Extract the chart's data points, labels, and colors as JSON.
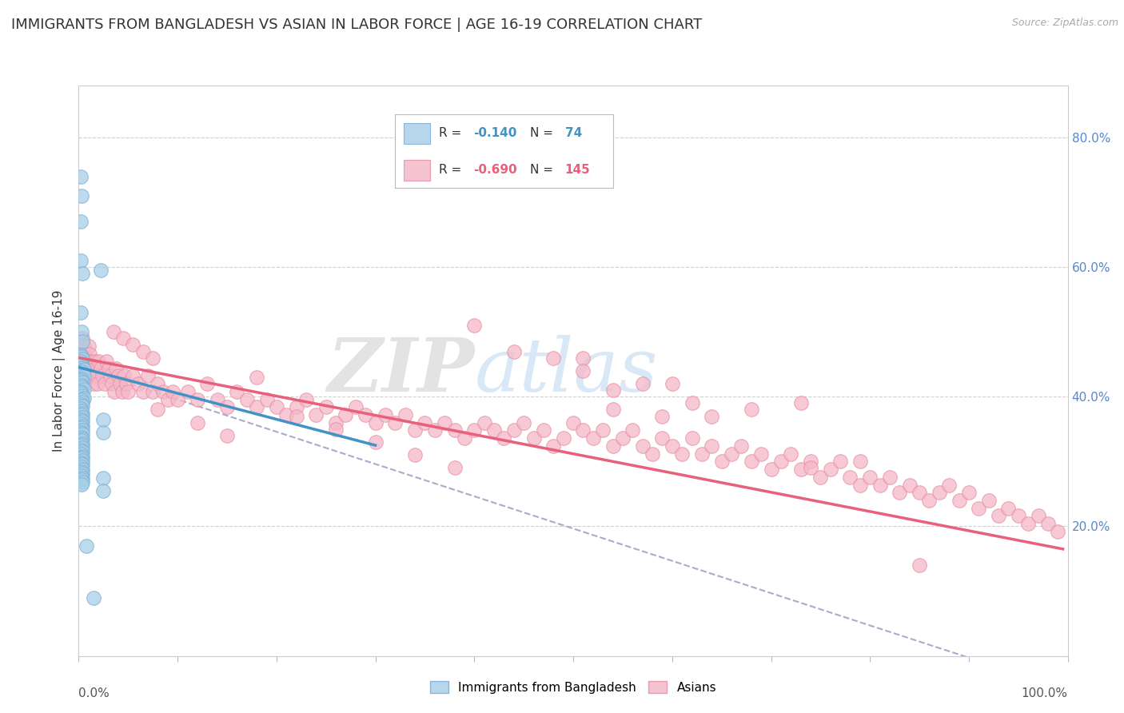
{
  "title": "IMMIGRANTS FROM BANGLADESH VS ASIAN IN LABOR FORCE | AGE 16-19 CORRELATION CHART",
  "source": "Source: ZipAtlas.com",
  "ylabel": "In Labor Force | Age 16-19",
  "xlim": [
    0.0,
    1.0
  ],
  "ylim": [
    0.0,
    0.88
  ],
  "y_ticks": [
    0.0,
    0.2,
    0.4,
    0.6,
    0.8
  ],
  "y_tick_labels": [
    "",
    "20.0%",
    "40.0%",
    "60.0%",
    "80.0%"
  ],
  "x_tick_left_label": "0.0%",
  "x_tick_right_label": "100.0%",
  "background_color": "#ffffff",
  "grid_color": "#d0d0d0",
  "watermark_text": "ZIP",
  "watermark_text2": "atlas",
  "legend_label1": "Immigrants from Bangladesh",
  "legend_label2": "Asians",
  "blue_color": "#a8cfe8",
  "blue_edge_color": "#7bafd4",
  "pink_color": "#f4b8c8",
  "pink_edge_color": "#e88fa5",
  "blue_line_color": "#4292c6",
  "pink_line_color": "#e8607a",
  "dashed_line_color": "#aaaacc",
  "right_tick_color": "#5588cc",
  "title_fontsize": 13,
  "axis_label_fontsize": 11,
  "tick_fontsize": 11,
  "blue_scatter": [
    [
      0.002,
      0.74
    ],
    [
      0.003,
      0.71
    ],
    [
      0.002,
      0.67
    ],
    [
      0.002,
      0.61
    ],
    [
      0.004,
      0.59
    ],
    [
      0.002,
      0.53
    ],
    [
      0.003,
      0.5
    ],
    [
      0.004,
      0.485
    ],
    [
      0.002,
      0.465
    ],
    [
      0.003,
      0.462
    ],
    [
      0.004,
      0.458
    ],
    [
      0.002,
      0.455
    ],
    [
      0.003,
      0.45
    ],
    [
      0.004,
      0.445
    ],
    [
      0.005,
      0.442
    ],
    [
      0.003,
      0.438
    ],
    [
      0.004,
      0.435
    ],
    [
      0.005,
      0.432
    ],
    [
      0.003,
      0.428
    ],
    [
      0.002,
      0.425
    ],
    [
      0.004,
      0.422
    ],
    [
      0.003,
      0.418
    ],
    [
      0.004,
      0.415
    ],
    [
      0.005,
      0.412
    ],
    [
      0.002,
      0.408
    ],
    [
      0.003,
      0.405
    ],
    [
      0.004,
      0.402
    ],
    [
      0.005,
      0.398
    ],
    [
      0.003,
      0.395
    ],
    [
      0.004,
      0.392
    ],
    [
      0.003,
      0.388
    ],
    [
      0.004,
      0.385
    ],
    [
      0.002,
      0.382
    ],
    [
      0.003,
      0.378
    ],
    [
      0.004,
      0.375
    ],
    [
      0.003,
      0.372
    ],
    [
      0.004,
      0.368
    ],
    [
      0.003,
      0.365
    ],
    [
      0.004,
      0.362
    ],
    [
      0.003,
      0.358
    ],
    [
      0.004,
      0.355
    ],
    [
      0.003,
      0.352
    ],
    [
      0.004,
      0.348
    ],
    [
      0.003,
      0.345
    ],
    [
      0.004,
      0.342
    ],
    [
      0.003,
      0.338
    ],
    [
      0.004,
      0.335
    ],
    [
      0.003,
      0.332
    ],
    [
      0.004,
      0.328
    ],
    [
      0.003,
      0.325
    ],
    [
      0.004,
      0.322
    ],
    [
      0.003,
      0.318
    ],
    [
      0.004,
      0.315
    ],
    [
      0.003,
      0.312
    ],
    [
      0.004,
      0.308
    ],
    [
      0.003,
      0.305
    ],
    [
      0.004,
      0.302
    ],
    [
      0.003,
      0.298
    ],
    [
      0.004,
      0.295
    ],
    [
      0.003,
      0.292
    ],
    [
      0.004,
      0.288
    ],
    [
      0.003,
      0.285
    ],
    [
      0.004,
      0.282
    ],
    [
      0.003,
      0.278
    ],
    [
      0.004,
      0.275
    ],
    [
      0.003,
      0.272
    ],
    [
      0.004,
      0.268
    ],
    [
      0.003,
      0.265
    ],
    [
      0.022,
      0.595
    ],
    [
      0.025,
      0.365
    ],
    [
      0.025,
      0.345
    ],
    [
      0.025,
      0.275
    ],
    [
      0.025,
      0.255
    ],
    [
      0.008,
      0.17
    ],
    [
      0.015,
      0.09
    ]
  ],
  "pink_scatter": [
    [
      0.004,
      0.49
    ],
    [
      0.005,
      0.478
    ],
    [
      0.006,
      0.466
    ],
    [
      0.007,
      0.455
    ],
    [
      0.008,
      0.443
    ],
    [
      0.009,
      0.432
    ],
    [
      0.01,
      0.478
    ],
    [
      0.011,
      0.466
    ],
    [
      0.012,
      0.455
    ],
    [
      0.013,
      0.443
    ],
    [
      0.014,
      0.432
    ],
    [
      0.015,
      0.42
    ],
    [
      0.016,
      0.455
    ],
    [
      0.017,
      0.443
    ],
    [
      0.018,
      0.432
    ],
    [
      0.019,
      0.42
    ],
    [
      0.02,
      0.455
    ],
    [
      0.022,
      0.443
    ],
    [
      0.024,
      0.432
    ],
    [
      0.026,
      0.42
    ],
    [
      0.028,
      0.455
    ],
    [
      0.03,
      0.443
    ],
    [
      0.032,
      0.432
    ],
    [
      0.034,
      0.42
    ],
    [
      0.036,
      0.408
    ],
    [
      0.038,
      0.443
    ],
    [
      0.04,
      0.432
    ],
    [
      0.042,
      0.42
    ],
    [
      0.044,
      0.408
    ],
    [
      0.046,
      0.432
    ],
    [
      0.048,
      0.42
    ],
    [
      0.05,
      0.408
    ],
    [
      0.055,
      0.432
    ],
    [
      0.06,
      0.42
    ],
    [
      0.065,
      0.408
    ],
    [
      0.07,
      0.432
    ],
    [
      0.075,
      0.408
    ],
    [
      0.08,
      0.42
    ],
    [
      0.085,
      0.408
    ],
    [
      0.09,
      0.396
    ],
    [
      0.095,
      0.408
    ],
    [
      0.1,
      0.396
    ],
    [
      0.11,
      0.408
    ],
    [
      0.12,
      0.396
    ],
    [
      0.13,
      0.42
    ],
    [
      0.14,
      0.396
    ],
    [
      0.15,
      0.384
    ],
    [
      0.16,
      0.408
    ],
    [
      0.17,
      0.396
    ],
    [
      0.18,
      0.384
    ],
    [
      0.19,
      0.396
    ],
    [
      0.2,
      0.384
    ],
    [
      0.21,
      0.372
    ],
    [
      0.22,
      0.384
    ],
    [
      0.23,
      0.396
    ],
    [
      0.24,
      0.372
    ],
    [
      0.25,
      0.384
    ],
    [
      0.26,
      0.36
    ],
    [
      0.27,
      0.372
    ],
    [
      0.28,
      0.384
    ],
    [
      0.29,
      0.372
    ],
    [
      0.3,
      0.36
    ],
    [
      0.31,
      0.372
    ],
    [
      0.32,
      0.36
    ],
    [
      0.33,
      0.372
    ],
    [
      0.34,
      0.348
    ],
    [
      0.35,
      0.36
    ],
    [
      0.36,
      0.348
    ],
    [
      0.37,
      0.36
    ],
    [
      0.38,
      0.348
    ],
    [
      0.39,
      0.336
    ],
    [
      0.4,
      0.348
    ],
    [
      0.41,
      0.36
    ],
    [
      0.42,
      0.348
    ],
    [
      0.43,
      0.336
    ],
    [
      0.44,
      0.348
    ],
    [
      0.45,
      0.36
    ],
    [
      0.46,
      0.336
    ],
    [
      0.47,
      0.348
    ],
    [
      0.48,
      0.324
    ],
    [
      0.49,
      0.336
    ],
    [
      0.5,
      0.36
    ],
    [
      0.51,
      0.348
    ],
    [
      0.52,
      0.336
    ],
    [
      0.53,
      0.348
    ],
    [
      0.54,
      0.324
    ],
    [
      0.55,
      0.336
    ],
    [
      0.56,
      0.348
    ],
    [
      0.57,
      0.324
    ],
    [
      0.58,
      0.312
    ],
    [
      0.59,
      0.336
    ],
    [
      0.6,
      0.324
    ],
    [
      0.61,
      0.312
    ],
    [
      0.62,
      0.336
    ],
    [
      0.63,
      0.312
    ],
    [
      0.64,
      0.324
    ],
    [
      0.65,
      0.3
    ],
    [
      0.66,
      0.312
    ],
    [
      0.67,
      0.324
    ],
    [
      0.68,
      0.3
    ],
    [
      0.69,
      0.312
    ],
    [
      0.7,
      0.288
    ],
    [
      0.71,
      0.3
    ],
    [
      0.72,
      0.312
    ],
    [
      0.73,
      0.288
    ],
    [
      0.74,
      0.3
    ],
    [
      0.75,
      0.276
    ],
    [
      0.76,
      0.288
    ],
    [
      0.77,
      0.3
    ],
    [
      0.78,
      0.276
    ],
    [
      0.79,
      0.264
    ],
    [
      0.8,
      0.276
    ],
    [
      0.81,
      0.264
    ],
    [
      0.82,
      0.276
    ],
    [
      0.83,
      0.252
    ],
    [
      0.84,
      0.264
    ],
    [
      0.85,
      0.252
    ],
    [
      0.86,
      0.24
    ],
    [
      0.87,
      0.252
    ],
    [
      0.88,
      0.264
    ],
    [
      0.89,
      0.24
    ],
    [
      0.9,
      0.252
    ],
    [
      0.91,
      0.228
    ],
    [
      0.92,
      0.24
    ],
    [
      0.93,
      0.216
    ],
    [
      0.94,
      0.228
    ],
    [
      0.95,
      0.216
    ],
    [
      0.96,
      0.204
    ],
    [
      0.97,
      0.216
    ],
    [
      0.98,
      0.204
    ],
    [
      0.99,
      0.192
    ],
    [
      0.035,
      0.5
    ],
    [
      0.045,
      0.49
    ],
    [
      0.055,
      0.48
    ],
    [
      0.065,
      0.47
    ],
    [
      0.075,
      0.46
    ],
    [
      0.08,
      0.38
    ],
    [
      0.12,
      0.36
    ],
    [
      0.15,
      0.34
    ],
    [
      0.18,
      0.43
    ],
    [
      0.22,
      0.37
    ],
    [
      0.26,
      0.35
    ],
    [
      0.3,
      0.33
    ],
    [
      0.34,
      0.31
    ],
    [
      0.38,
      0.29
    ],
    [
      0.4,
      0.51
    ],
    [
      0.44,
      0.47
    ],
    [
      0.48,
      0.46
    ],
    [
      0.51,
      0.46
    ],
    [
      0.51,
      0.44
    ],
    [
      0.54,
      0.41
    ],
    [
      0.54,
      0.38
    ],
    [
      0.57,
      0.42
    ],
    [
      0.59,
      0.37
    ],
    [
      0.6,
      0.42
    ],
    [
      0.62,
      0.39
    ],
    [
      0.64,
      0.37
    ],
    [
      0.68,
      0.38
    ],
    [
      0.73,
      0.39
    ],
    [
      0.74,
      0.29
    ],
    [
      0.79,
      0.3
    ],
    [
      0.85,
      0.14
    ]
  ],
  "blue_trend_x": [
    0.001,
    0.3
  ],
  "blue_trend_y": [
    0.445,
    0.325
  ],
  "pink_trend_x": [
    0.001,
    0.995
  ],
  "pink_trend_y": [
    0.46,
    0.165
  ],
  "dashed_line_x": [
    0.001,
    0.995
  ],
  "dashed_line_y": [
    0.445,
    -0.05
  ]
}
